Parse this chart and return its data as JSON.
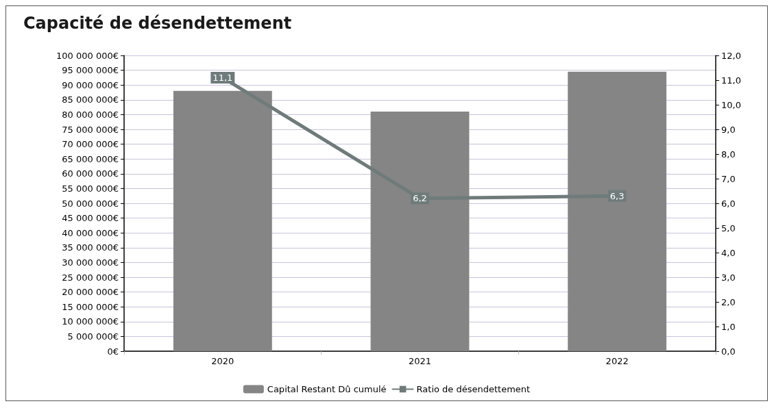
{
  "chart_data": {
    "type": "bar",
    "title": "Capacité de désendettement",
    "categories": [
      "2020",
      "2021",
      "2022"
    ],
    "series": [
      {
        "name": "Capital Restant Dû cumulé",
        "color": "#858585",
        "values": [
          88000000,
          81000000,
          94500000
        ]
      },
      {
        "name": "Ratio de désendettement",
        "type": "line",
        "axis": "y2",
        "color": "#6f7b7b",
        "values": [
          11.1,
          6.2,
          6.3
        ],
        "value_labels": [
          "11,1",
          "6,2",
          "6,3"
        ]
      }
    ],
    "ylim": [
      0,
      100000000
    ],
    "yticks": [
      {
        "value": 0,
        "label": "0€"
      },
      {
        "value": 5000000,
        "label": "5 000 000€"
      },
      {
        "value": 10000000,
        "label": "10 000 000€"
      },
      {
        "value": 15000000,
        "label": "15 000 000€"
      },
      {
        "value": 20000000,
        "label": "20 000 000€"
      },
      {
        "value": 25000000,
        "label": "25 000 000€"
      },
      {
        "value": 30000000,
        "label": "30 000 000€"
      },
      {
        "value": 35000000,
        "label": "35 000 000€"
      },
      {
        "value": 40000000,
        "label": "40 000 000€"
      },
      {
        "value": 45000000,
        "label": "45 000 000€"
      },
      {
        "value": 50000000,
        "label": "50 000 000€"
      },
      {
        "value": 55000000,
        "label": "55 000 000€"
      },
      {
        "value": 60000000,
        "label": "60 000 000€"
      },
      {
        "value": 65000000,
        "label": "65 000 000€"
      },
      {
        "value": 70000000,
        "label": "70 000 000€"
      },
      {
        "value": 75000000,
        "label": "75 000 000€"
      },
      {
        "value": 80000000,
        "label": "80 000 000€"
      },
      {
        "value": 85000000,
        "label": "85 000 000€"
      },
      {
        "value": 90000000,
        "label": "90 000 000€"
      },
      {
        "value": 95000000,
        "label": "95 000 000€"
      },
      {
        "value": 100000000,
        "label": "100 000 000€"
      }
    ],
    "y2lim": [
      0,
      12
    ],
    "y2ticks": [
      {
        "value": 0,
        "label": "0,0"
      },
      {
        "value": 1,
        "label": "1,0"
      },
      {
        "value": 2,
        "label": "2,0"
      },
      {
        "value": 3,
        "label": "3,0"
      },
      {
        "value": 4,
        "label": "4,0"
      },
      {
        "value": 5,
        "label": "5,0"
      },
      {
        "value": 6,
        "label": "6,0"
      },
      {
        "value": 7,
        "label": "7,0"
      },
      {
        "value": 8,
        "label": "8,0"
      },
      {
        "value": 9,
        "label": "9,0"
      },
      {
        "value": 10,
        "label": "10,0"
      },
      {
        "value": 11,
        "label": "11,0"
      },
      {
        "value": 12,
        "label": "12,0"
      }
    ],
    "grid": "y",
    "legend": "bottom",
    "marker": "square",
    "line_style": "solid"
  }
}
